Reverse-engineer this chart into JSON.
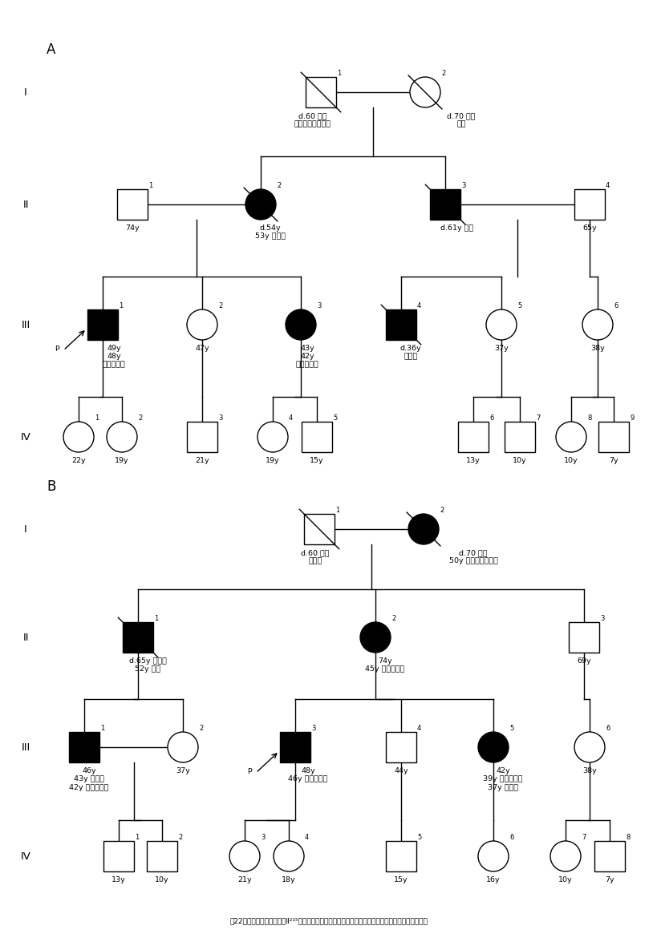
{
  "background": "#ffffff",
  "line_color": "#000000",
  "text_color": "#000000",
  "affected_fill": "#000000",
  "unaffected_fill": "#ffffff",
  "fig_width": 8.0,
  "fig_height": 11.61
}
